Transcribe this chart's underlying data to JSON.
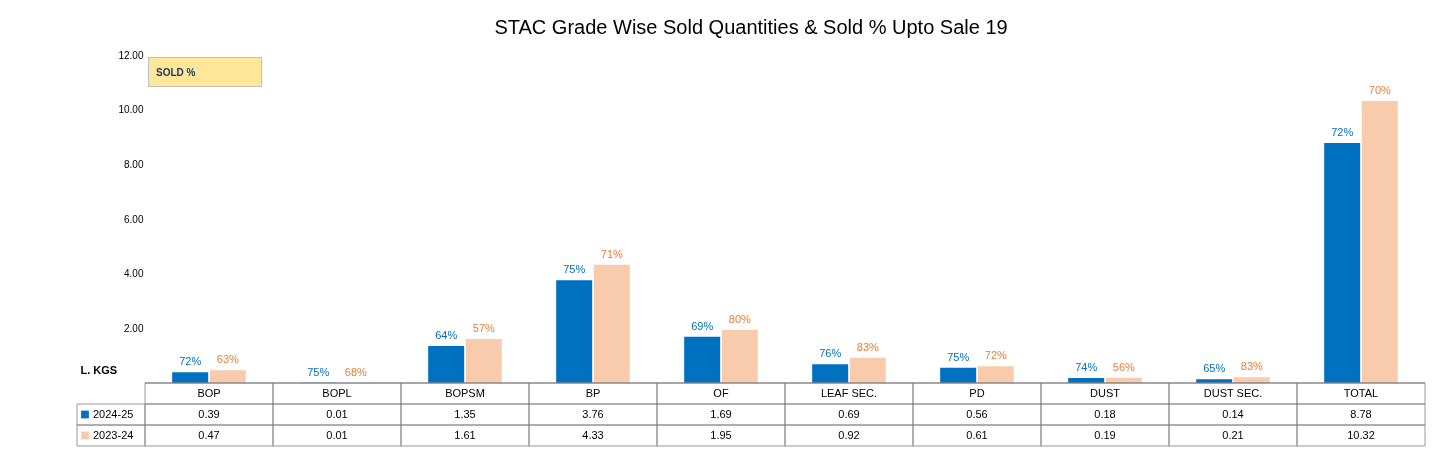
{
  "chart_data": {
    "type": "bar",
    "title": "STAC Grade Wise Sold Quantities & Sold % Upto Sale 19",
    "ylabel": "L. KGS",
    "annotations": [
      "SOLD %",
      {
        "text": "72%",
        "x": "BOP",
        "y": 0.39
      },
      {
        "text": "75%",
        "x": "BOPL",
        "y": 0.01
      },
      {
        "text": "64%",
        "x": "BOPSM",
        "y": 1.35
      },
      {
        "text": "75%",
        "x": "BP",
        "y": 3.76
      },
      {
        "text": "69%",
        "x": "OF",
        "y": 1.69
      },
      {
        "text": "76%",
        "x": "LEAF SEC.",
        "y": 0.69
      },
      {
        "text": "75%",
        "x": "PD",
        "y": 0.56
      },
      {
        "text": "74%",
        "x": "DUST",
        "y": 0.18
      },
      {
        "text": "65%",
        "x": "DUST SEC.",
        "y": 0.14
      },
      {
        "text": "72%",
        "x": "TOTAL",
        "y": 8.78
      },
      {
        "text": "63%",
        "x": "BOP",
        "y": 0.47
      },
      {
        "text": "68%",
        "x": "BOPL",
        "y": 0.01
      },
      {
        "text": "57%",
        "x": "BOPSM",
        "y": 1.61
      },
      {
        "text": "71%",
        "x": "BP",
        "y": 4.33
      },
      {
        "text": "80%",
        "x": "OF",
        "y": 1.95
      },
      {
        "text": "83%",
        "x": "LEAF SEC.",
        "y": 0.92
      },
      {
        "text": "72%",
        "x": "PD",
        "y": 0.61
      },
      {
        "text": "56%",
        "x": "DUST",
        "y": 0.19
      },
      {
        "text": "83%",
        "x": "DUST SEC.",
        "y": 0.21
      },
      {
        "text": "70%",
        "x": "TOTAL",
        "y": 10.32
      }
    ],
    "categories": [
      "BOP",
      "BOPL",
      "BOPSM",
      "BP",
      "OF",
      "LEAF SEC.",
      "PD",
      "DUST",
      "DUST SEC.",
      "TOTAL"
    ],
    "series": [
      {
        "name": "2024-25",
        "color": "#0070c0",
        "values": [
          0.39,
          0.01,
          1.35,
          3.76,
          1.69,
          0.69,
          0.56,
          0.18,
          0.14,
          8.78
        ]
      },
      {
        "name": "2023-24",
        "color": "#f8cbad",
        "values": [
          0.47,
          0.01,
          1.61,
          4.33,
          1.95,
          0.92,
          0.61,
          0.19,
          0.21,
          10.32
        ]
      }
    ],
    "ylim": [
      0,
      12
    ],
    "yticks": [
      {
        "value": 2,
        "label": "2.00"
      },
      {
        "value": 4,
        "label": "4.00"
      },
      {
        "value": 6,
        "label": "6.00"
      },
      {
        "value": 8,
        "label": "8.00"
      },
      {
        "value": 10,
        "label": "10.00"
      },
      {
        "value": 12,
        "label": "12.00"
      }
    ],
    "data_labels": true,
    "legend": "bottom"
  }
}
